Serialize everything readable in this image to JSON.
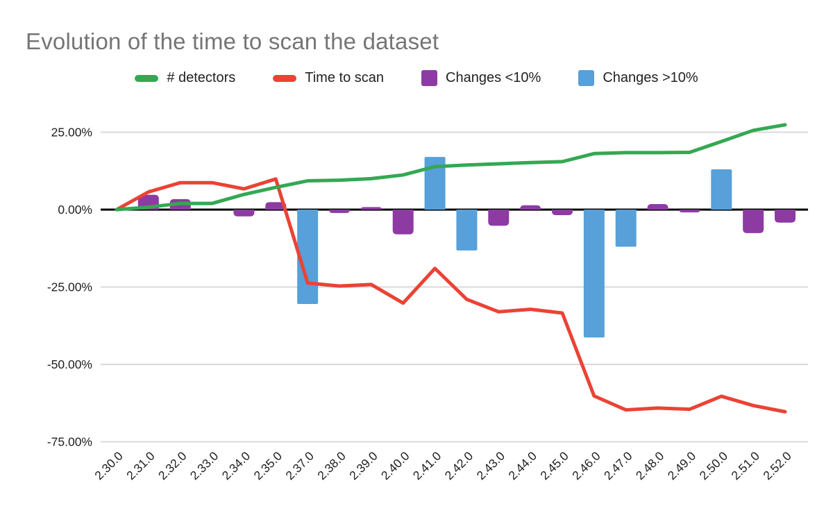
{
  "chart_data": {
    "type": "combo",
    "title": "Evolution of the time to scan the dataset",
    "categories": [
      "2.30.0",
      "2.31.0",
      "2.32.0",
      "2.33.0",
      "2.34.0",
      "2.35.0",
      "2.37.0",
      "2.38.0",
      "2.39.0",
      "2.40.0",
      "2.41.0",
      "2.42.0",
      "2.43.0",
      "2.44.0",
      "2.45.0",
      "2.46.0",
      "2.47.0",
      "2.48.0",
      "2.49.0",
      "2.50.0",
      "2.51.0",
      "2.52.0"
    ],
    "y_axis": {
      "tick_values": [
        25,
        0,
        -25,
        -50,
        -75
      ],
      "tick_labels": [
        "25.00%",
        "0.00%",
        "-25.00%",
        "-50.00%",
        "-75.00%"
      ],
      "min": -75,
      "max": 30,
      "grid": true
    },
    "legend_position": "top",
    "series": [
      {
        "name": "# detectors",
        "type": "line",
        "color": "#34a853",
        "values": [
          0,
          0.8,
          2,
          2,
          4.9,
          7.2,
          9.3,
          9.5,
          10,
          11.2,
          13.9,
          14.4,
          14.8,
          15.2,
          15.5,
          18.1,
          18.4,
          18.4,
          18.5,
          22,
          25.6,
          27.4
        ]
      },
      {
        "name": "Time to scan",
        "type": "line",
        "color": "#ea4335",
        "values": [
          0,
          5.7,
          8.7,
          8.7,
          6.7,
          9.9,
          -23.7,
          -24.7,
          -24.2,
          -30.2,
          -19,
          -29,
          -33,
          -32.2,
          -33.4,
          -60.2,
          -64.7,
          -64.1,
          -64.5,
          -60.3,
          -63.3,
          -65.3
        ]
      },
      {
        "name": "Changes <10%",
        "type": "bar",
        "color": "#8d3ba3",
        "values": [
          null,
          4.8,
          3.4,
          null,
          -2.2,
          2.4,
          null,
          -1.1,
          0.8,
          -8,
          null,
          null,
          -5.2,
          1.4,
          -1.8,
          null,
          null,
          1.8,
          -0.9,
          null,
          -7.6,
          -4.2
        ]
      },
      {
        "name": "Changes >10%",
        "type": "bar",
        "color": "#57a0d9",
        "values": [
          null,
          null,
          null,
          null,
          null,
          null,
          -30.5,
          null,
          null,
          null,
          17,
          -13.2,
          null,
          null,
          null,
          -41.3,
          -12,
          null,
          null,
          13,
          null,
          null
        ]
      }
    ],
    "colors": {
      "gridline": "#d9d9d9",
      "zero_axis": "#000000",
      "title_text": "#757575",
      "axis_text": "#212121"
    }
  }
}
